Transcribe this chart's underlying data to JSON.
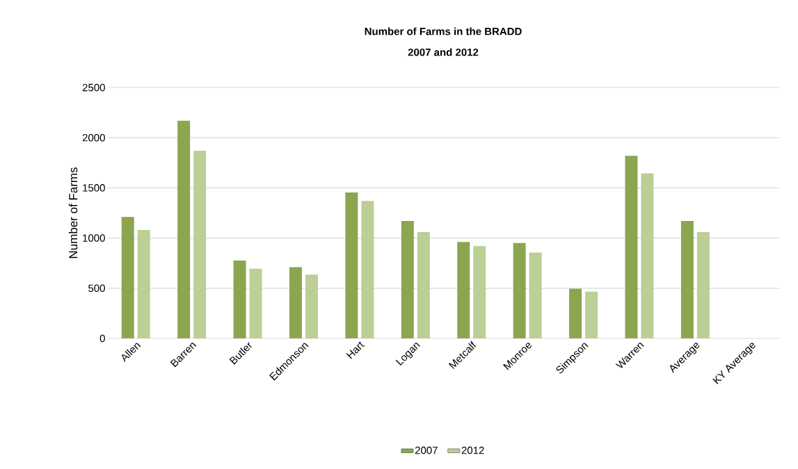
{
  "chart_data": {
    "type": "bar",
    "title": "Number of Farms in the BRADD",
    "subtitle": "2007 and 2012",
    "ylabel": "Number of Farms",
    "categories": [
      "Allen",
      "Barren",
      "Butler",
      "Edmonson",
      "Hart",
      "Logan",
      "Metcalf",
      "Monroe",
      "Simpson",
      "Warren",
      "Average",
      "KY Average"
    ],
    "series": [
      {
        "name": "2007",
        "color": "#8ba64f",
        "values": [
          1210,
          2170,
          775,
          710,
          1455,
          1170,
          960,
          950,
          495,
          1820,
          1170,
          null
        ]
      },
      {
        "name": "2012",
        "color": "#bbcf96",
        "values": [
          1080,
          1870,
          695,
          635,
          1370,
          1060,
          920,
          855,
          465,
          1645,
          1060,
          null
        ]
      }
    ],
    "ylim": [
      0,
      2500
    ],
    "yticks": [
      0,
      500,
      1000,
      1500,
      2000,
      2500
    ],
    "grid": "y",
    "legend": "bottom"
  }
}
